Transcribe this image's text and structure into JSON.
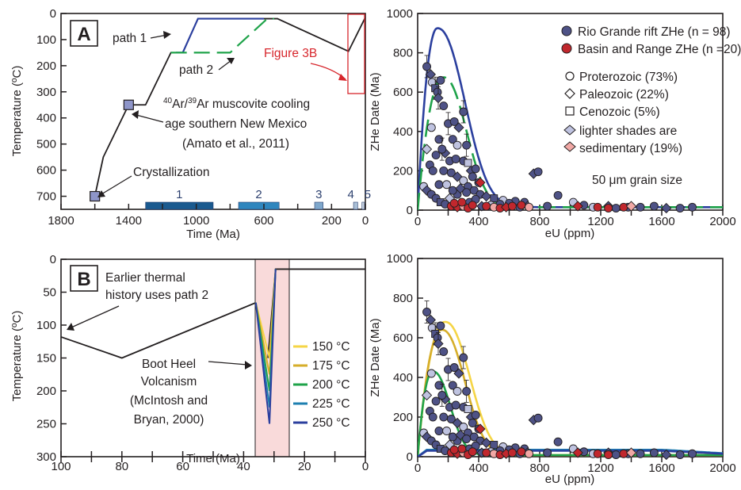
{
  "panelA": {
    "label": "A",
    "xlabel": "Time (Ma)",
    "ylabel": "Temperature (ºC)",
    "xticks": [
      "1800",
      "1400",
      "1000",
      "600",
      "200",
      "0"
    ],
    "yticks": [
      "0",
      "100",
      "200",
      "300",
      "400",
      "500",
      "600",
      "700"
    ],
    "path1_label": "path 1",
    "path2_label": "path 2",
    "figure3b_label": "Figure 3B",
    "ar_line1": "Ar/ Ar muscovite cooling",
    "ar_sup1": "40",
    "ar_sup2": "39",
    "ar_line2": "age southern New Mexico",
    "ar_line3": "(Amato et al., 2011)",
    "crystallization": "Crystallization",
    "bar_labels": [
      "1",
      "2",
      "3",
      "4",
      "5"
    ]
  },
  "panelB": {
    "label": "B",
    "xlabel": "Time (Ma)",
    "ylabel": "Temperature (ºC)",
    "xticks": [
      "100",
      "80",
      "60",
      "40",
      "20",
      "0"
    ],
    "yticks": [
      "0",
      "50",
      "100",
      "150",
      "200",
      "250",
      "300"
    ],
    "earlier1": "Earlier thermal",
    "earlier2": "history uses path 2",
    "volc1": "Boot Heel",
    "volc2": "Volcanism",
    "volc3": "(McIntosh and",
    "volc4": "Bryan, 2000)",
    "legend": [
      "150 °C",
      "175 °C",
      "200 °C",
      "225 °C",
      "250 °C"
    ]
  },
  "panelR": {
    "xlabel": "eU (ppm)",
    "ylabel": "ZHe Date (Ma)",
    "xticks": [
      "0",
      "400",
      "800",
      "1200",
      "1600",
      "2000"
    ],
    "yticks": [
      "0",
      "200",
      "400",
      "600",
      "800",
      "1000"
    ],
    "legend_rio": "Rio Grande rift ZHe (n = 98)",
    "legend_br": "Basin and Range ZHe (n =20)",
    "legend_prot": "Proterozoic (73%)",
    "legend_pal": "Paleozoic (22%)",
    "legend_cen": "Cenozoic (5%)",
    "legend_light1": "lighter shades are",
    "legend_light2": "sedimentary (19%)",
    "grain": "50 μm grain size"
  },
  "colors": {
    "path1": "#2b3f9e",
    "path2": "#1fa34a",
    "figure_box": "#d7262c",
    "marker": "#8e95c9",
    "rio": "#4e5286",
    "rio_light": "#bfc3e0",
    "basin": "#c1272d",
    "basin_light": "#f1a8a5",
    "highlight": "#f9dada",
    "t150": "#f5d546",
    "t175": "#d6ae2a",
    "t200": "#1fa34a",
    "t225": "#1d7fb0",
    "t250": "#2b3f9e"
  },
  "chart_data": [
    {
      "type": "line",
      "panel": "A",
      "xlim": [
        1800,
        0
      ],
      "ylim": [
        750,
        0
      ],
      "series": [
        {
          "name": "path 1",
          "x": [
            1600,
            1550,
            1400,
            1300,
            1150,
            1120,
            600,
            520,
            100,
            0
          ],
          "y": [
            700,
            550,
            350,
            350,
            150,
            150,
            20,
            20,
            145,
            15
          ]
        },
        {
          "name": "path 2",
          "x": [
            1150,
            800,
            580,
            540
          ],
          "y": [
            150,
            150,
            20,
            20
          ]
        }
      ],
      "markers": [
        {
          "x": 1600,
          "y": 700
        },
        {
          "x": 1400,
          "y": 350
        }
      ],
      "bars": [
        {
          "label": "1",
          "x0": 1300,
          "x1": 900
        },
        {
          "label": "2",
          "x0": 750,
          "x1": 510
        },
        {
          "label": "3",
          "x0": 300,
          "x1": 250
        },
        {
          "label": "4",
          "x0": 70,
          "x1": 45
        },
        {
          "label": "5",
          "x0": 20,
          "x1": 5
        }
      ]
    },
    {
      "type": "line",
      "panel": "B",
      "xlim": [
        100,
        0
      ],
      "ylim": [
        300,
        0
      ],
      "highlight": [
        36,
        25
      ],
      "base": {
        "x": [
          100,
          80,
          36
        ],
        "y": [
          118,
          150,
          66
        ]
      },
      "series": [
        {
          "name": "150 °C",
          "peak": 150
        },
        {
          "name": "175 °C",
          "peak": 175
        },
        {
          "name": "200 °C",
          "peak": 200
        },
        {
          "name": "225 °C",
          "peak": 225
        },
        {
          "name": "250 °C",
          "peak": 250
        }
      ],
      "after": {
        "x": [
          32,
          25,
          0
        ],
        "y": [
          150,
          15,
          15
        ]
      }
    },
    {
      "type": "scatter",
      "panel": "top-right",
      "xlim": [
        0,
        2000
      ],
      "ylim": [
        0,
        1000
      ],
      "xlabel": "eU (ppm)",
      "ylabel": "ZHe Date (Ma)",
      "series": [
        {
          "name": "Rio Grande rift ZHe (n = 98)"
        },
        {
          "name": "Basin and Range ZHe (n =20)"
        }
      ],
      "model_curves": [
        {
          "name": "path 1",
          "peak_x": 130,
          "peak_y": 925
        },
        {
          "name": "path 2",
          "peak_x": 170,
          "peak_y": 675
        }
      ]
    },
    {
      "type": "scatter",
      "panel": "bottom-right",
      "xlim": [
        0,
        2000
      ],
      "ylim": [
        0,
        1000
      ],
      "xlabel": "eU (ppm)",
      "ylabel": "ZHe Date (Ma)",
      "model_curves": [
        {
          "name": "150 °C",
          "peak_x": 180,
          "peak_y": 680
        },
        {
          "name": "175 °C",
          "peak_x": 160,
          "peak_y": 640
        },
        {
          "name": "200 °C",
          "peak_x": 100,
          "peak_y": 430
        },
        {
          "name": "225 °C",
          "peak_x": 300,
          "peak_y": 35
        },
        {
          "name": "250 °C",
          "peak_x": 300,
          "peak_y": 30
        }
      ]
    }
  ]
}
